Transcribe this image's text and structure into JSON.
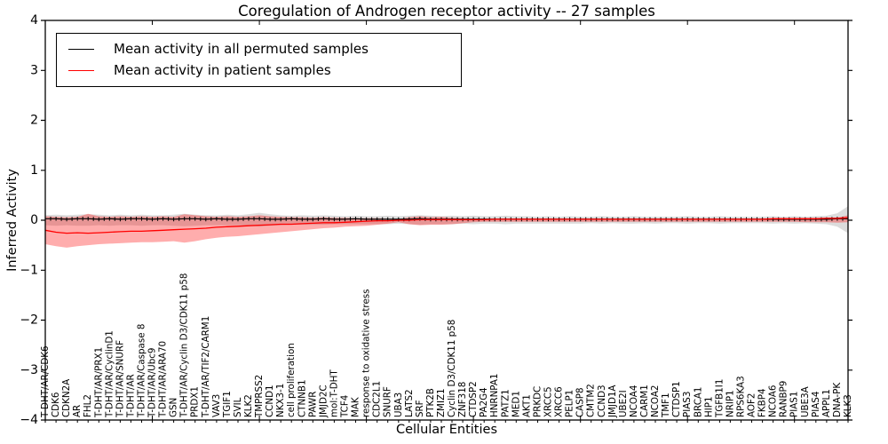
{
  "title": "Coregulation of Androgen receptor activity -- 27 samples",
  "chart_data": {
    "type": "line",
    "title": "Coregulation of Androgen receptor activity -- 27 samples",
    "xlabel": "Cellular Entities",
    "ylabel": "Inferred Activity",
    "ylim": [
      -4,
      4
    ],
    "yticks": [
      -4,
      -3,
      -2,
      -1,
      0,
      1,
      2,
      3,
      4
    ],
    "grid": false,
    "legend_position": "upper left",
    "x_tick_rotation": 90,
    "categories": [
      "T-DHT/AR/CDK6",
      "CDK6",
      "CDKN2A",
      "AR",
      "FHL2",
      "T-DHT/AR/PRX1",
      "T-DHT/AR/CyclinD1",
      "T-DHT/AR/SNURF",
      "T-DHT/AR",
      "T-DHT/AR/Caspase 8",
      "T-DHT/AR/Ubc9",
      "T-DHT/AR/ARA70",
      "GSN",
      "T-DHT/AR/Cyclin D3/CDK11 p58",
      "PRDX1",
      "T-DHT/AR/TIF2/CARM1",
      "VAV3",
      "TGIF1",
      "SVIL",
      "KLK2",
      "TMPRSS2",
      "CCND1",
      "NKX3-1",
      "cell proliferation",
      "CTNNB1",
      "PAWR",
      "JMJD2C",
      "mol:T-DHT",
      "TCF4",
      "MAK",
      "response to oxidative stress",
      "CDC2L1",
      "SNURF",
      "UBA3",
      "LATS2",
      "SRF",
      "PTK2B",
      "ZMIZ1",
      "Cyclin D3/CDK11 p58",
      "ZNF318",
      "CTDSP2",
      "PA2G4",
      "HNRNPA1",
      "PATZ1",
      "MED1",
      "AKT1",
      "PRKDC",
      "XRCC5",
      "XRCC6",
      "PELP1",
      "CASP8",
      "CMTM2",
      "CCND3",
      "JMJD1A",
      "UBE2I",
      "NCOA4",
      "CARM1",
      "NCOA2",
      "TMF1",
      "CTDSP1",
      "PIAS3",
      "BRCA1",
      "HIP1",
      "TGFB1I1",
      "NRIP1",
      "RPS6KA3",
      "AOF2",
      "FKBP4",
      "NCOA6",
      "RANBP9",
      "PIAS1",
      "UBE3A",
      "PIAS4",
      "APPL1",
      "DNA-PK",
      "KLK3"
    ],
    "series": [
      {
        "name": "Mean activity in all permuted samples",
        "color": "#000000",
        "band_color": "rgba(128,128,128,0.28)",
        "values": [
          0.03,
          0.03,
          0.02,
          0.03,
          0.03,
          0.02,
          0.03,
          0.02,
          0.03,
          0.03,
          0.02,
          0.03,
          0.02,
          0.03,
          0.03,
          0.02,
          0.03,
          0.02,
          0.02,
          0.03,
          0.03,
          0.02,
          0.02,
          0.03,
          0.02,
          0.02,
          0.03,
          0.02,
          0.02,
          0.03,
          0.02,
          0.02,
          0.02,
          0.02,
          0.02,
          0.03,
          0.02,
          0.02,
          0.02,
          0.02,
          0.02,
          0.02,
          0.02,
          0.02,
          0.02,
          0.02,
          0.02,
          0.02,
          0.02,
          0.02,
          0.02,
          0.02,
          0.02,
          0.02,
          0.02,
          0.02,
          0.02,
          0.02,
          0.02,
          0.02,
          0.02,
          0.02,
          0.02,
          0.02,
          0.02,
          0.02,
          0.02,
          0.02,
          0.02,
          0.02,
          0.02,
          0.02,
          0.02,
          0.02,
          0.03,
          0.03
        ],
        "band_upper": [
          0.1,
          0.11,
          0.1,
          0.11,
          0.12,
          0.11,
          0.1,
          0.11,
          0.1,
          0.11,
          0.1,
          0.1,
          0.11,
          0.13,
          0.11,
          0.1,
          0.1,
          0.11,
          0.1,
          0.12,
          0.15,
          0.12,
          0.1,
          0.09,
          0.1,
          0.09,
          0.1,
          0.09,
          0.08,
          0.09,
          0.08,
          0.08,
          0.09,
          0.08,
          0.09,
          0.1,
          0.09,
          0.08,
          0.09,
          0.08,
          0.09,
          0.08,
          0.08,
          0.09,
          0.08,
          0.08,
          0.07,
          0.08,
          0.07,
          0.08,
          0.07,
          0.07,
          0.08,
          0.07,
          0.07,
          0.08,
          0.07,
          0.07,
          0.07,
          0.07,
          0.08,
          0.07,
          0.07,
          0.08,
          0.07,
          0.07,
          0.07,
          0.07,
          0.08,
          0.07,
          0.08,
          0.07,
          0.08,
          0.09,
          0.14,
          0.28
        ],
        "band_lower": [
          -0.1,
          -0.11,
          -0.1,
          -0.11,
          -0.11,
          -0.1,
          -0.11,
          -0.1,
          -0.1,
          -0.11,
          -0.1,
          -0.1,
          -0.11,
          -0.12,
          -0.11,
          -0.1,
          -0.1,
          -0.1,
          -0.1,
          -0.11,
          -0.13,
          -0.11,
          -0.1,
          -0.09,
          -0.09,
          -0.09,
          -0.09,
          -0.08,
          -0.08,
          -0.08,
          -0.08,
          -0.08,
          -0.08,
          -0.07,
          -0.08,
          -0.09,
          -0.08,
          -0.08,
          -0.08,
          -0.07,
          -0.08,
          -0.07,
          -0.07,
          -0.08,
          -0.07,
          -0.07,
          -0.07,
          -0.07,
          -0.07,
          -0.07,
          -0.07,
          -0.06,
          -0.07,
          -0.06,
          -0.07,
          -0.07,
          -0.06,
          -0.07,
          -0.06,
          -0.06,
          -0.07,
          -0.06,
          -0.06,
          -0.07,
          -0.06,
          -0.06,
          -0.06,
          -0.06,
          -0.07,
          -0.06,
          -0.07,
          -0.06,
          -0.07,
          -0.08,
          -0.13,
          -0.26
        ]
      },
      {
        "name": "Mean activity in patient samples",
        "color": "#ff0000",
        "band_color": "rgba(255,0,0,0.32)",
        "values": [
          -0.2,
          -0.24,
          -0.26,
          -0.25,
          -0.26,
          -0.25,
          -0.24,
          -0.23,
          -0.22,
          -0.22,
          -0.21,
          -0.2,
          -0.19,
          -0.18,
          -0.17,
          -0.16,
          -0.14,
          -0.13,
          -0.12,
          -0.11,
          -0.1,
          -0.09,
          -0.08,
          -0.08,
          -0.07,
          -0.06,
          -0.05,
          -0.05,
          -0.04,
          -0.03,
          -0.02,
          -0.01,
          -0.01,
          0.0,
          0.0,
          0.01,
          0.01,
          0.01,
          0.01,
          0.01,
          0.01,
          0.01,
          0.02,
          0.02,
          0.02,
          0.02,
          0.02,
          0.02,
          0.02,
          0.02,
          0.02,
          0.02,
          0.02,
          0.02,
          0.02,
          0.02,
          0.02,
          0.02,
          0.02,
          0.02,
          0.02,
          0.02,
          0.02,
          0.02,
          0.02,
          0.02,
          0.02,
          0.02,
          0.03,
          0.03,
          0.03,
          0.03,
          0.03,
          0.04,
          0.04,
          0.05
        ],
        "band_upper": [
          0.08,
          0.07,
          0.06,
          0.07,
          0.13,
          0.08,
          0.07,
          0.08,
          0.07,
          0.08,
          0.07,
          0.08,
          0.07,
          0.12,
          0.1,
          0.08,
          0.07,
          0.08,
          0.07,
          0.08,
          0.1,
          0.08,
          0.07,
          0.06,
          0.06,
          0.05,
          0.06,
          0.05,
          0.05,
          0.04,
          0.04,
          0.04,
          0.03,
          0.02,
          0.06,
          0.08,
          0.06,
          0.07,
          0.05,
          0.04,
          0.03,
          0.03,
          0.03,
          0.03,
          0.03,
          0.03,
          0.03,
          0.03,
          0.03,
          0.03,
          0.03,
          0.03,
          0.03,
          0.03,
          0.03,
          0.03,
          0.03,
          0.03,
          0.03,
          0.03,
          0.03,
          0.03,
          0.03,
          0.03,
          0.03,
          0.03,
          0.03,
          0.03,
          0.03,
          0.03,
          0.03,
          0.04,
          0.04,
          0.04,
          0.05,
          0.1
        ],
        "band_lower": [
          -0.48,
          -0.52,
          -0.55,
          -0.52,
          -0.5,
          -0.48,
          -0.47,
          -0.46,
          -0.45,
          -0.44,
          -0.44,
          -0.43,
          -0.42,
          -0.45,
          -0.42,
          -0.38,
          -0.35,
          -0.33,
          -0.32,
          -0.3,
          -0.28,
          -0.26,
          -0.24,
          -0.22,
          -0.2,
          -0.18,
          -0.16,
          -0.15,
          -0.13,
          -0.12,
          -0.11,
          -0.09,
          -0.07,
          -0.04,
          -0.08,
          -0.1,
          -0.09,
          -0.09,
          -0.08,
          -0.06,
          -0.04,
          -0.03,
          -0.03,
          -0.03,
          -0.03,
          -0.03,
          -0.03,
          -0.03,
          -0.03,
          -0.03,
          -0.03,
          -0.03,
          -0.03,
          -0.03,
          -0.03,
          -0.03,
          -0.03,
          -0.03,
          -0.03,
          -0.03,
          -0.03,
          -0.03,
          -0.03,
          -0.03,
          -0.03,
          -0.03,
          -0.03,
          -0.03,
          -0.03,
          -0.03,
          -0.03,
          -0.04,
          -0.04,
          -0.04,
          -0.05,
          -0.04
        ]
      }
    ]
  }
}
